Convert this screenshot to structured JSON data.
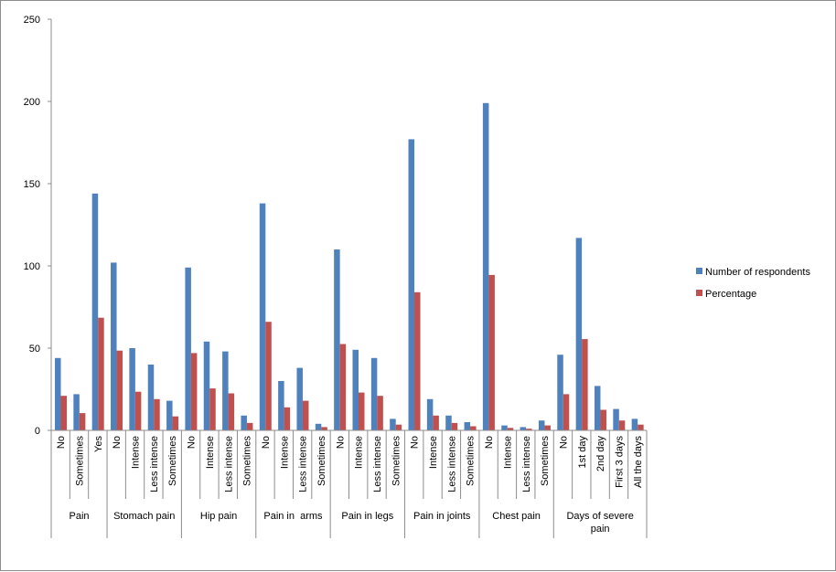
{
  "chart_data": {
    "type": "bar",
    "title": "",
    "xlabel": "",
    "ylabel": "",
    "ylim": [
      0,
      250
    ],
    "yticks": [
      0,
      50,
      100,
      150,
      200,
      250
    ],
    "grid": false,
    "legend_position": "right",
    "groups": [
      {
        "name": "Pain",
        "categories": [
          "No",
          "Sometimes",
          "Yes"
        ]
      },
      {
        "name": "Stomach pain",
        "categories": [
          "No",
          "Intense",
          "Less intense",
          "Sometimes"
        ]
      },
      {
        "name": "Hip pain",
        "categories": [
          "No",
          "Intense",
          "Less intense",
          "Sometimes"
        ]
      },
      {
        "name": "Pain in  arms",
        "categories": [
          "No",
          "Intense",
          "Less intense",
          "Sometimes"
        ]
      },
      {
        "name": "Pain in legs",
        "categories": [
          "No",
          "Intense",
          "Less intense",
          "Sometimes"
        ]
      },
      {
        "name": "Pain in joints",
        "categories": [
          "No",
          "Intense",
          "Less intense",
          "Sometimes"
        ]
      },
      {
        "name": "Chest pain",
        "categories": [
          "No",
          "Intense",
          "Less intense",
          "Sometimes"
        ]
      },
      {
        "name": "Days of severe pain",
        "categories": [
          "No",
          "1st day",
          "2nd day",
          "First 3 days",
          "All the days"
        ]
      }
    ],
    "series": [
      {
        "name": "Number of respondents",
        "color": "#4f81bd",
        "values": [
          44,
          22,
          144,
          102,
          50,
          40,
          18,
          99,
          54,
          48,
          9,
          138,
          30,
          38,
          4,
          110,
          49,
          44,
          7,
          177,
          19,
          9,
          5,
          199,
          3,
          2,
          6,
          46,
          117,
          27,
          13,
          7
        ]
      },
      {
        "name": "Percentage",
        "color": "#c0504d",
        "values": [
          21,
          10.5,
          68.5,
          48.5,
          23.5,
          19,
          8.5,
          47,
          25.5,
          22.5,
          4.5,
          66,
          14,
          18,
          2,
          52.5,
          23,
          21,
          3.5,
          84,
          9,
          4.5,
          2.5,
          94.5,
          1.5,
          1,
          3,
          22,
          55.5,
          12.5,
          6,
          3.5
        ]
      }
    ]
  }
}
